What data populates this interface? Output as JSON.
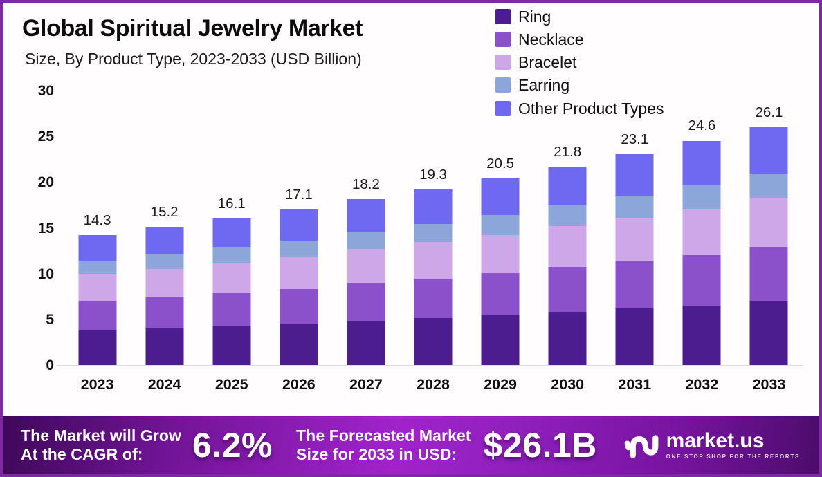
{
  "header": {
    "title": "Global Spiritual Jewelry Market",
    "subtitle": "Size, By Product Type, 2023-2033 (USD Billion)"
  },
  "chart_data": {
    "type": "bar",
    "stacked": true,
    "title": "Global Spiritual Jewelry Market",
    "subtitle": "Size, By Product Type, 2023-2033 (USD Billion)",
    "unit": "USD Billion",
    "categories": [
      "2023",
      "2024",
      "2025",
      "2026",
      "2027",
      "2028",
      "2029",
      "2030",
      "2031",
      "2032",
      "2033"
    ],
    "series": [
      {
        "name": "Ring",
        "color": "#4c1d8f",
        "values": [
          3.9,
          4.1,
          4.3,
          4.6,
          4.9,
          5.2,
          5.5,
          5.9,
          6.3,
          6.6,
          7.0
        ]
      },
      {
        "name": "Necklace",
        "color": "#8b51cb",
        "values": [
          3.2,
          3.4,
          3.6,
          3.8,
          4.1,
          4.3,
          4.6,
          4.9,
          5.2,
          5.5,
          5.9
        ]
      },
      {
        "name": "Bracelet",
        "color": "#cda7e8",
        "values": [
          2.9,
          3.1,
          3.3,
          3.5,
          3.8,
          4.0,
          4.2,
          4.5,
          4.7,
          5.0,
          5.4
        ]
      },
      {
        "name": "Earring",
        "color": "#8ca6d9",
        "values": [
          1.5,
          1.6,
          1.7,
          1.8,
          1.9,
          2.0,
          2.2,
          2.3,
          2.4,
          2.6,
          2.7
        ]
      },
      {
        "name": "Other Product Types",
        "color": "#6f68f0",
        "values": [
          2.8,
          3.0,
          3.2,
          3.4,
          3.5,
          3.8,
          4.0,
          4.2,
          4.5,
          4.9,
          5.1
        ]
      }
    ],
    "totals": [
      14.3,
      15.2,
      16.1,
      17.1,
      18.2,
      19.3,
      20.5,
      21.8,
      23.1,
      24.6,
      26.1
    ],
    "ylim": [
      0,
      30
    ],
    "yticks": [
      0,
      5,
      10,
      15,
      20,
      25,
      30
    ],
    "grid": false,
    "legend_position": "top-right"
  },
  "banner": {
    "cagr_label_line1": "The Market will Grow",
    "cagr_label_line2": "At the CAGR of:",
    "cagr_value": "6.2%",
    "forecast_label_line1": "The Forecasted Market",
    "forecast_label_line2": "Size for 2033 in USD:",
    "forecast_value": "$26.1B",
    "logo_text": "market.us",
    "logo_tagline": "ONE STOP SHOP FOR THE REPORTS"
  },
  "colors": {
    "frame_border": "#7d2aa2",
    "chart_background": "#fffdfd",
    "baseline": "#dcdce0",
    "banner_gradient_start": "#3f0859",
    "banner_gradient_mid": "#a123cb",
    "banner_gradient_end": "#4c0c6b",
    "text_dark": "#0d0d0d",
    "text_light": "#ffffff"
  }
}
